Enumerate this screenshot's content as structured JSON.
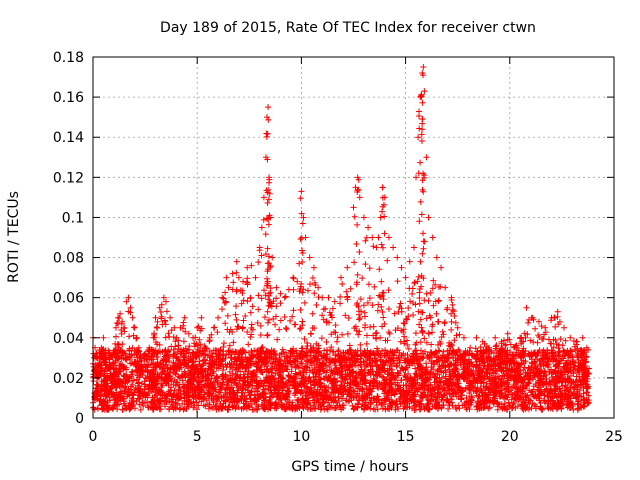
{
  "chart_data": {
    "type": "scatter",
    "title": "Day 189 of 2015, Rate Of TEC Index for receiver ctwn",
    "xlabel": "GPS time / hours",
    "ylabel": "ROTI / TECUs",
    "xlim": [
      0,
      25
    ],
    "ylim": [
      0,
      0.18
    ],
    "xticks": [
      0,
      5,
      10,
      15,
      20,
      25
    ],
    "xtick_labels": [
      "0",
      "5",
      "10",
      "15",
      "20",
      "25"
    ],
    "yticks": [
      0,
      0.02,
      0.04,
      0.06,
      0.08,
      0.1,
      0.12,
      0.14,
      0.16,
      0.18
    ],
    "ytick_labels": [
      "0",
      "0.02",
      "0.04",
      "0.06",
      "0.08",
      "0.1",
      "0.12",
      "0.14",
      "0.16",
      "0.18"
    ],
    "grid": true,
    "marker": "+",
    "marker_color": "#ff0000",
    "series": [
      {
        "x": [
          0.0,
          0.05,
          0.1,
          0.15,
          0.2,
          0.3,
          0.4,
          0.5,
          0.6,
          0.7,
          0.8,
          0.9,
          1.0,
          1.1,
          1.2,
          1.3,
          1.4,
          1.5,
          1.6,
          1.7,
          1.8,
          1.9,
          2.0,
          2.1,
          2.2,
          2.3,
          2.5,
          2.7,
          2.9,
          3.0,
          3.2,
          3.4,
          3.5,
          3.7,
          3.9,
          4.0,
          4.2,
          4.4,
          4.6,
          4.8,
          5.0,
          5.2,
          5.4,
          5.6,
          5.8,
          6.0,
          6.2,
          6.4,
          6.5,
          6.7,
          6.9,
          7.0,
          7.2,
          7.4,
          7.6,
          7.8,
          8.0,
          8.1,
          8.2,
          8.3,
          8.35,
          8.4,
          8.45,
          8.5,
          8.6,
          8.8,
          9.0,
          9.2,
          9.4,
          9.6,
          9.8,
          10.0,
          10.1,
          10.2,
          10.4,
          10.6,
          10.8,
          11.0,
          11.3,
          11.6,
          11.9,
          12.2,
          12.5,
          12.6,
          12.7,
          12.8,
          13.0,
          13.2,
          13.4,
          13.6,
          13.7,
          13.8,
          13.9,
          14.0,
          14.2,
          14.4,
          14.6,
          14.8,
          15.0,
          15.2,
          15.4,
          15.5,
          15.6,
          15.7,
          15.8,
          15.85,
          15.9,
          16.0,
          16.1,
          16.3,
          16.5,
          16.7,
          16.9,
          17.2,
          17.5,
          17.8,
          18.1,
          18.4,
          18.7,
          19.0,
          19.3,
          19.6,
          19.9,
          20.2,
          20.5,
          20.8,
          21.1,
          21.4,
          21.7,
          22.0,
          22.3,
          22.6,
          22.9,
          23.2,
          23.5,
          23.7
        ],
        "y": [
          0.04,
          0.03,
          0.035,
          0.025,
          0.02,
          0.03,
          0.035,
          0.04,
          0.025,
          0.02,
          0.03,
          0.02,
          0.025,
          0.045,
          0.05,
          0.052,
          0.048,
          0.045,
          0.058,
          0.06,
          0.055,
          0.05,
          0.045,
          0.04,
          0.035,
          0.03,
          0.032,
          0.035,
          0.04,
          0.05,
          0.055,
          0.06,
          0.058,
          0.05,
          0.045,
          0.04,
          0.045,
          0.05,
          0.042,
          0.04,
          0.045,
          0.05,
          0.035,
          0.04,
          0.045,
          0.05,
          0.06,
          0.07,
          0.065,
          0.072,
          0.078,
          0.07,
          0.068,
          0.075,
          0.076,
          0.07,
          0.085,
          0.095,
          0.11,
          0.13,
          0.15,
          0.155,
          0.12,
          0.1,
          0.08,
          0.065,
          0.062,
          0.06,
          0.064,
          0.07,
          0.068,
          0.113,
          0.1,
          0.09,
          0.08,
          0.075,
          0.065,
          0.06,
          0.06,
          0.058,
          0.07,
          0.075,
          0.105,
          0.115,
          0.12,
          0.11,
          0.1,
          0.095,
          0.09,
          0.085,
          0.09,
          0.1,
          0.115,
          0.11,
          0.09,
          0.085,
          0.08,
          0.075,
          0.07,
          0.078,
          0.085,
          0.12,
          0.14,
          0.16,
          0.172,
          0.175,
          0.163,
          0.13,
          0.1,
          0.09,
          0.08,
          0.075,
          0.065,
          0.06,
          0.045,
          0.04,
          0.035,
          0.04,
          0.038,
          0.035,
          0.04,
          0.038,
          0.042,
          0.035,
          0.04,
          0.055,
          0.05,
          0.048,
          0.045,
          0.05,
          0.053,
          0.045,
          0.04,
          0.038,
          0.04,
          0.035
        ]
      }
    ],
    "data_notes": "dense band of points mostly between 0.005 and 0.035 across 0-23.8 h; values above are the visible upper envelope"
  }
}
